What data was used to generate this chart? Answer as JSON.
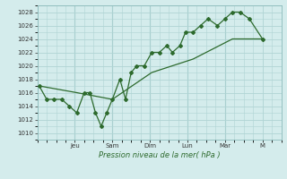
{
  "title": "",
  "xlabel": "Pression niveau de la mer( hPa )",
  "ylabel": "",
  "bg_color": "#d4ecec",
  "line_color": "#2d6a2d",
  "grid_color": "#b0d4d4",
  "ylim": [
    1009,
    1029
  ],
  "yticks": [
    1010,
    1012,
    1014,
    1016,
    1018,
    1020,
    1022,
    1024,
    1026,
    1028
  ],
  "day_labels": [
    "Jeu",
    "Sam",
    "Dim",
    "Lun",
    "Mar",
    "M"
  ],
  "day_positions": [
    2,
    4,
    6,
    8,
    10,
    12
  ],
  "xlim": [
    0,
    13
  ],
  "line1_x": [
    0.1,
    0.5,
    0.9,
    1.3,
    1.7,
    2.1,
    2.5,
    2.8,
    3.1,
    3.4,
    3.7,
    4.0,
    4.4,
    4.7,
    5.0,
    5.3,
    5.7,
    6.1,
    6.5,
    6.9,
    7.2,
    7.6,
    7.9,
    8.3,
    8.7,
    9.1,
    9.6,
    10.0,
    10.4,
    10.8,
    11.3,
    12.0
  ],
  "line1_y": [
    1017,
    1015,
    1015,
    1015,
    1014,
    1013,
    1016,
    1016,
    1013,
    1011,
    1013,
    1015,
    1018,
    1015,
    1019,
    1020,
    1020,
    1022,
    1022,
    1023,
    1022,
    1023,
    1025,
    1025,
    1026,
    1027,
    1026,
    1027,
    1028,
    1028,
    1027,
    1024
  ],
  "line2_x": [
    0.1,
    2.1,
    4.0,
    6.1,
    8.3,
    10.4,
    12.0
  ],
  "line2_y": [
    1017,
    1016,
    1015,
    1019,
    1021,
    1024,
    1024
  ]
}
